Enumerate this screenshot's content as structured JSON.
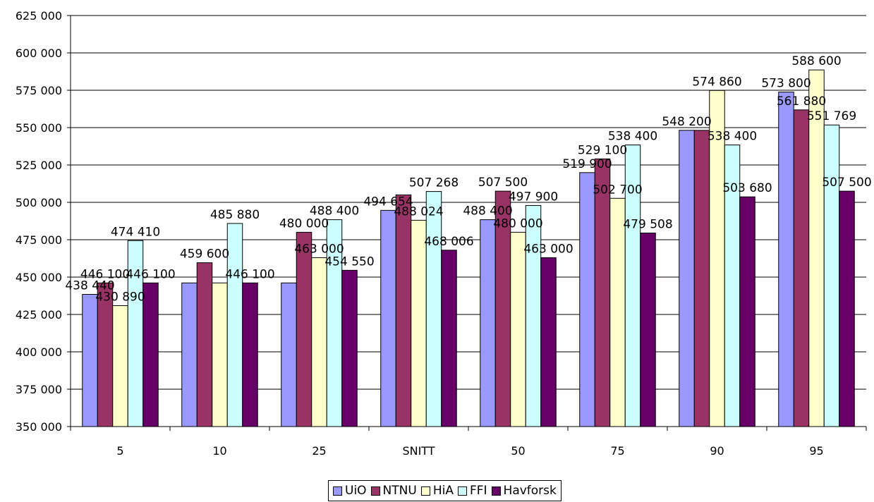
{
  "chart_data": {
    "type": "bar",
    "categories": [
      "5",
      "10",
      "25",
      "SNITT",
      "50",
      "75",
      "90",
      "95"
    ],
    "series": [
      {
        "name": "UiO",
        "color": "#9999ff",
        "values": [
          438440,
          446100,
          446100,
          494654,
          488400,
          519900,
          548200,
          573800
        ]
      },
      {
        "name": "NTNU",
        "color": "#993366",
        "values": [
          446100,
          459600,
          480000,
          505000,
          507500,
          529100,
          548200,
          561880
        ]
      },
      {
        "name": "HiA",
        "color": "#ffffcc",
        "values": [
          430890,
          446100,
          463000,
          488024,
          480000,
          502700,
          574860,
          588600
        ]
      },
      {
        "name": "FFI",
        "color": "#ccffff",
        "values": [
          474410,
          485880,
          488400,
          507268,
          497900,
          538400,
          538400,
          551769
        ]
      },
      {
        "name": "Havforsk",
        "color": "#660066",
        "values": [
          446100,
          446100,
          454550,
          468006,
          463000,
          479508,
          503680,
          507500
        ]
      }
    ],
    "data_labels": [
      [
        "438 440",
        "446 100",
        "430 890",
        "474 410",
        "446 100"
      ],
      [
        "",
        "459 600",
        "",
        "485 880",
        "446 100"
      ],
      [
        "",
        "480 000",
        "463 000",
        "488 400",
        "454 550"
      ],
      [
        "494 654",
        "",
        "488 024",
        "507 268",
        "468 006"
      ],
      [
        "488 400",
        "507 500",
        "480 000",
        "497 900",
        "463 000"
      ],
      [
        "519 900",
        "529 100",
        "502 700",
        "538 400",
        "479 508"
      ],
      [
        "548 200",
        "",
        "574 860",
        "538 400",
        "503 680"
      ],
      [
        "573 800",
        "561 880",
        "588 600",
        "551 769",
        "507 500"
      ]
    ],
    "y_ticks": [
      "350 000",
      "375 000",
      "400 000",
      "425 000",
      "450 000",
      "475 000",
      "500 000",
      "525 000",
      "550 000",
      "575 000",
      "600 000",
      "625 000"
    ],
    "ylim": [
      350000,
      625000
    ],
    "ytick_step": 25000,
    "grid": true,
    "legend_position": "bottom",
    "title": "",
    "xlabel": "",
    "ylabel": ""
  }
}
